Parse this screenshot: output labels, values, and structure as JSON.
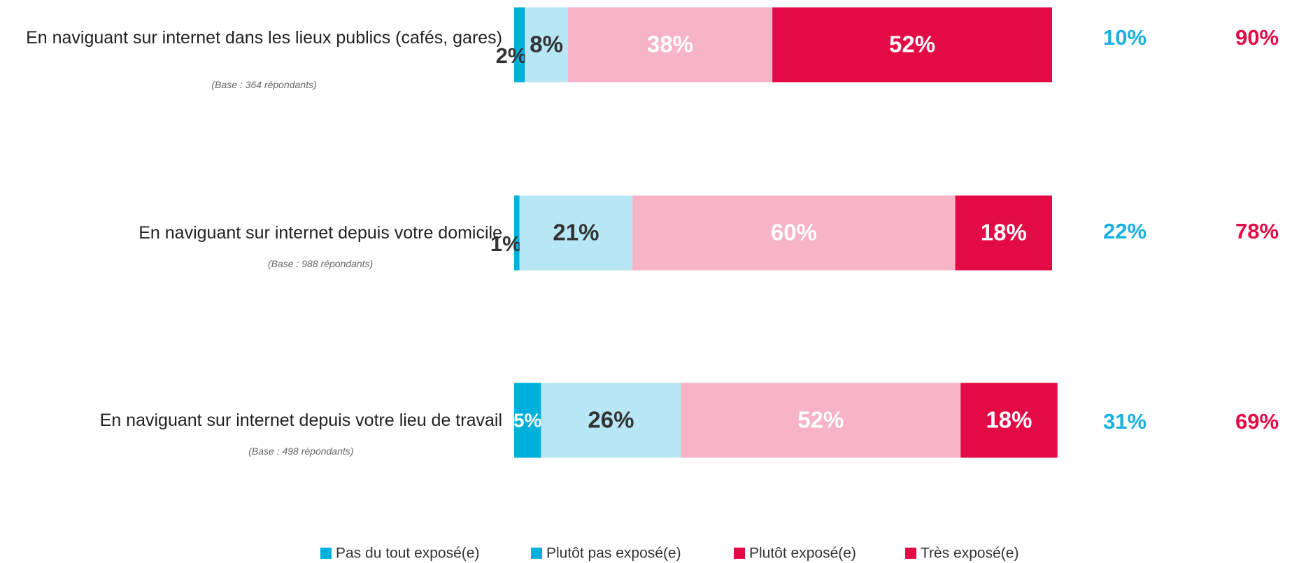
{
  "chart_data": {
    "type": "stacked_bar_horizontal",
    "categories": [
      "En naviguant sur internet dans les lieux publics (cafés, gares)",
      "En naviguant sur internet depuis votre domicile",
      "En naviguant sur internet depuis votre  lieu de travail"
    ],
    "category_notes": [
      "(Base : 364 répondants)",
      "(Base : 988 répondants)",
      "(Base : 498 répondants)"
    ],
    "xlim": [
      0,
      100
    ],
    "series": [
      {
        "name": "Pas du tout exposé(e)",
        "color": "#00b0dc",
        "legend_color": "#00b0dc",
        "values": [
          2,
          1,
          5
        ],
        "value_labels": [
          "2%",
          "1%",
          "5%"
        ]
      },
      {
        "name": "Plutôt pas exposé(e)",
        "color": "#b7e6f4",
        "legend_color": "#00b0dc",
        "values": [
          8,
          21,
          26
        ],
        "value_labels": [
          "8%",
          "21%",
          "26%"
        ]
      },
      {
        "name": "Plutôt exposé(e)",
        "color": "#f6b4c6",
        "legend_color": "#e30b45",
        "values": [
          38,
          60,
          52
        ],
        "value_labels": [
          "38%",
          "60%",
          "52%"
        ]
      },
      {
        "name": "Très exposé(e)",
        "color": "#e30b45",
        "legend_color": "#e30b45",
        "values": [
          52,
          18,
          18
        ],
        "value_labels": [
          "52%",
          "18%",
          "18%"
        ]
      }
    ],
    "totals": [
      {
        "color": "#1ab0e0",
        "values": [
          10,
          22,
          31
        ],
        "value_labels": [
          "10%",
          "22%",
          "31%"
        ]
      },
      {
        "color": "#e30b45",
        "values": [
          90,
          78,
          69
        ],
        "value_labels": [
          "90%",
          "78%",
          "69%"
        ]
      }
    ],
    "legend": "bottom"
  }
}
